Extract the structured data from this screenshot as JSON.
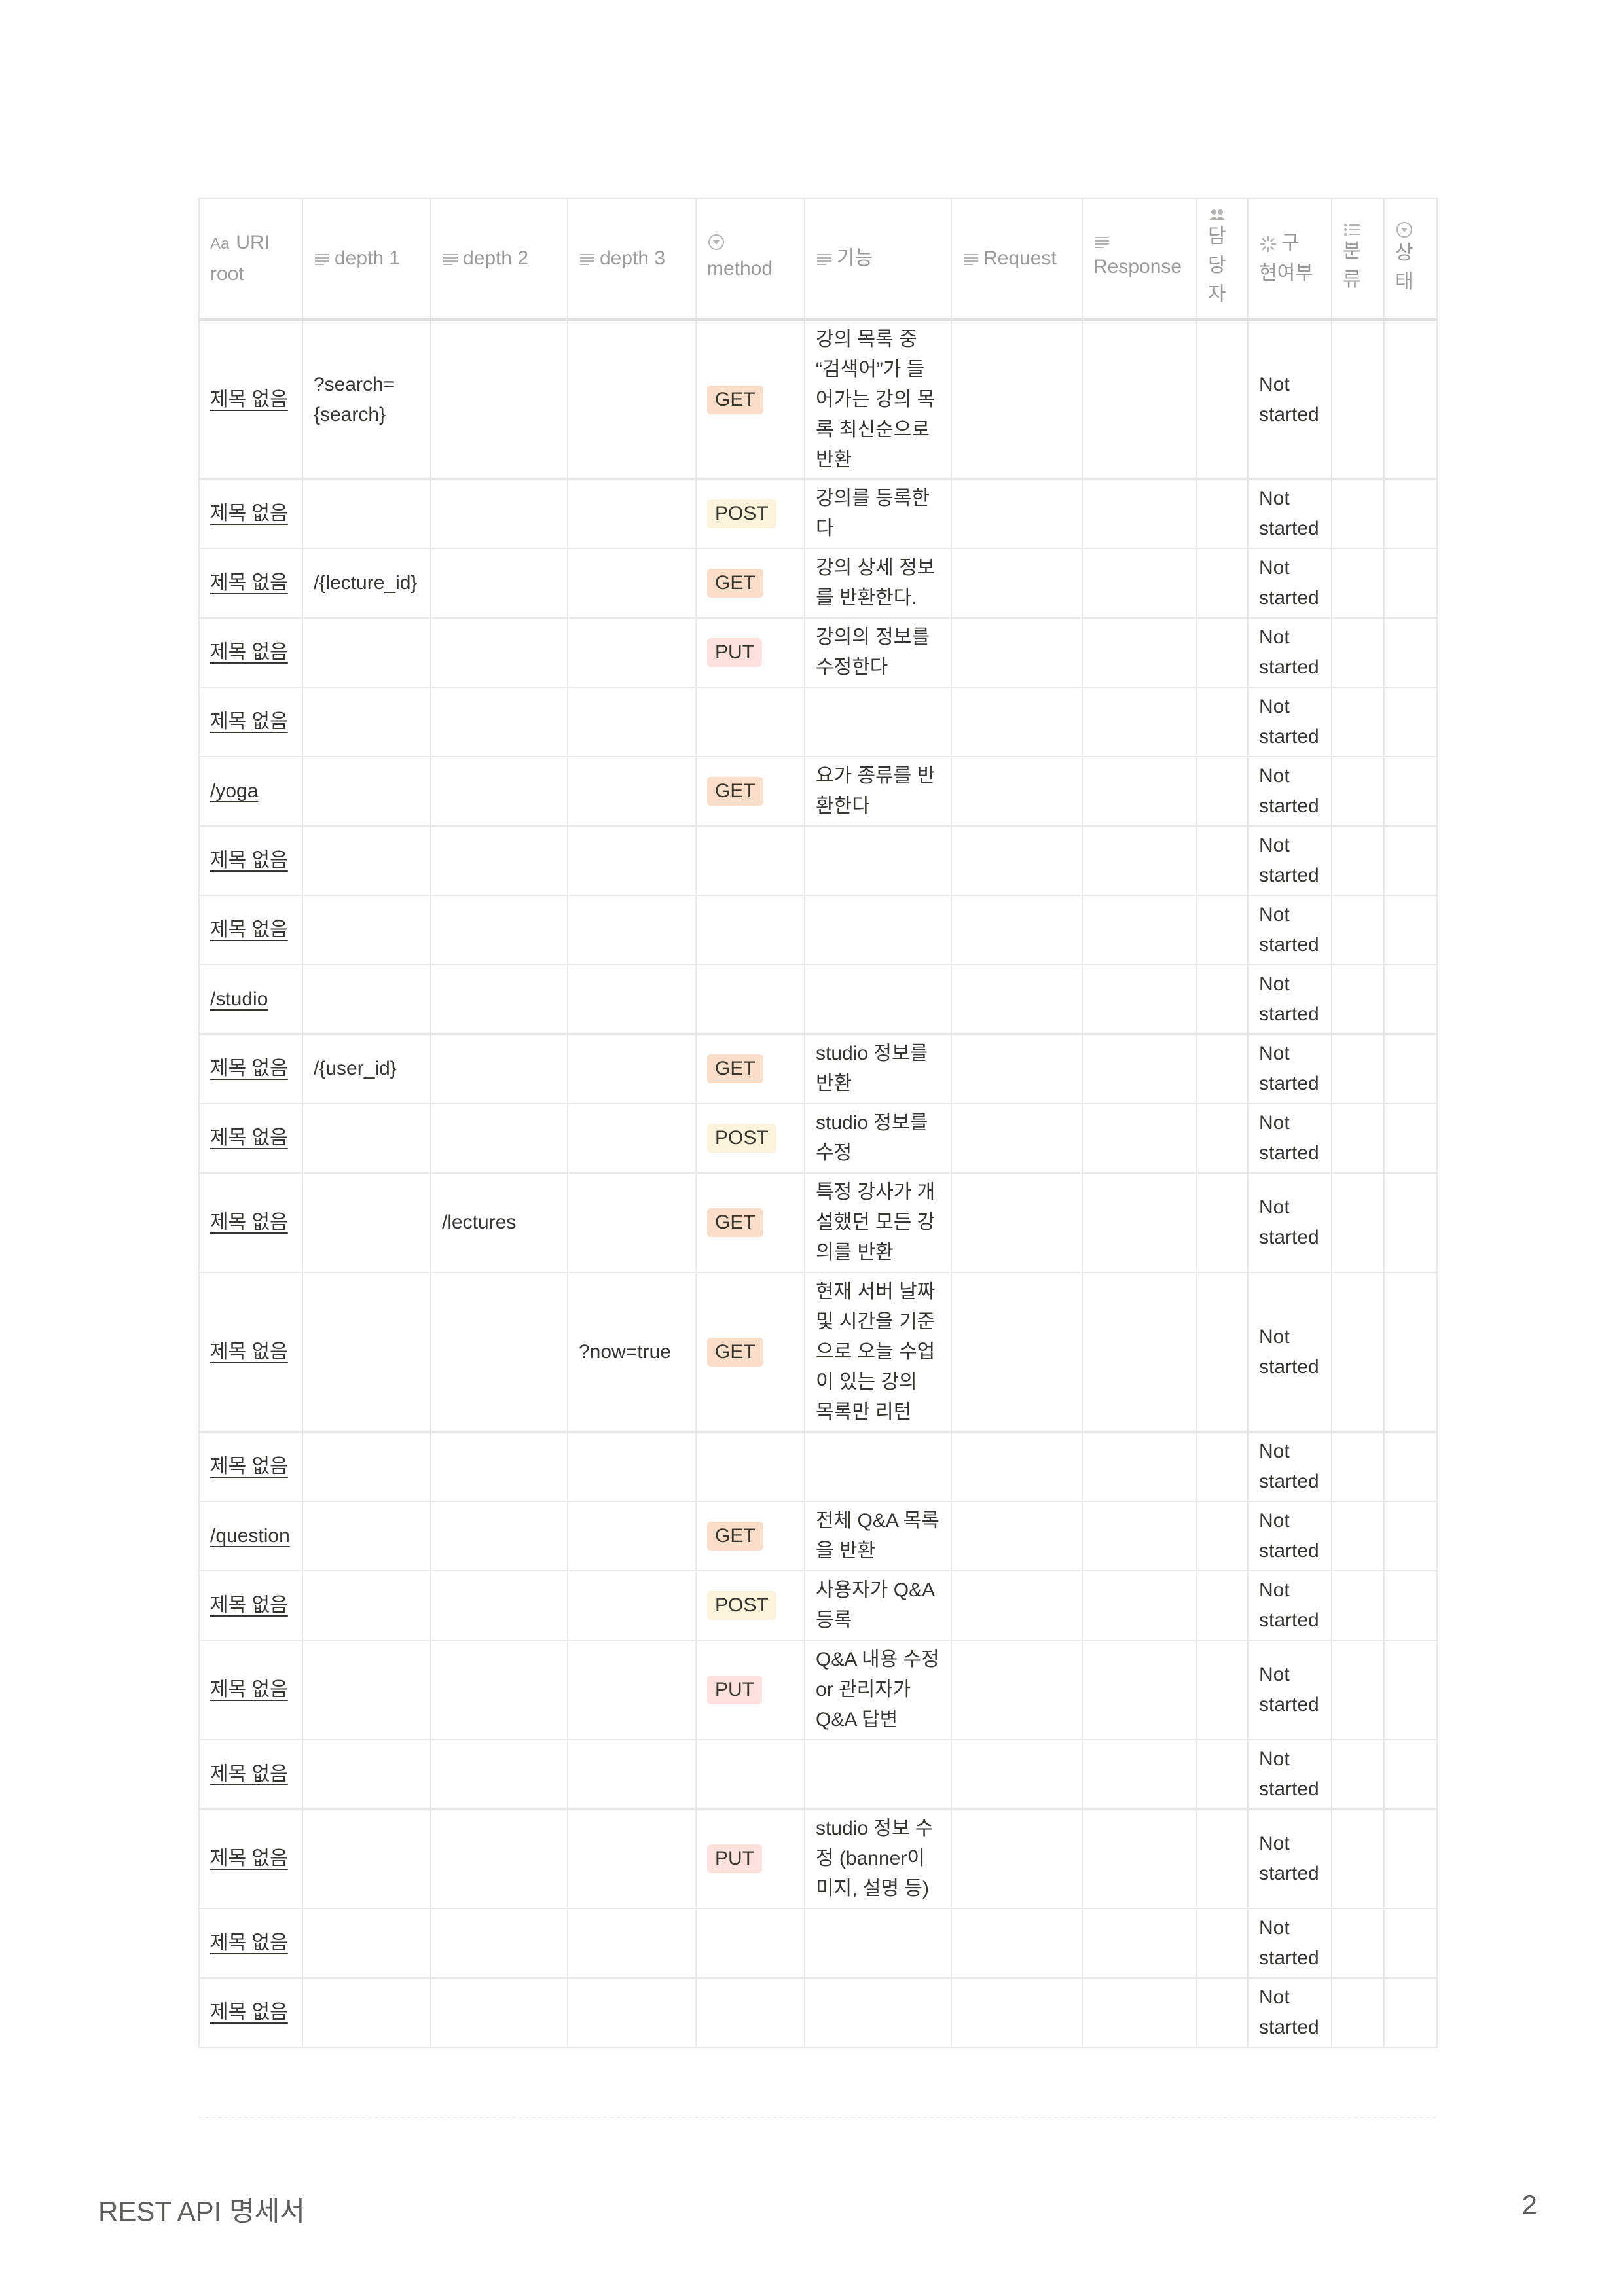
{
  "headers": {
    "uri_root": "URI root",
    "aa": "Aa",
    "depth1": "depth 1",
    "depth2": "depth 2",
    "depth3": "depth 3",
    "method": "method",
    "feature": "기능",
    "request": "Request",
    "response": "Response",
    "assignee": [
      "담",
      "당",
      "자"
    ],
    "implemented": "구 현여부",
    "category": [
      "분",
      "류"
    ],
    "status": [
      "상",
      "태"
    ]
  },
  "method_colors": {
    "GET": "#fadec9",
    "POST": "#fbf3db",
    "PUT": "#ffe2dd"
  },
  "rows": [
    {
      "uri": "제목 없음",
      "depth1": "?search=\n{search}",
      "depth2": "",
      "depth3": "",
      "method": "GET",
      "feature": "강의 목록 중 “검색어”가 들어가는 강의 목록 최신순으로 반환",
      "implemented": "Not started"
    },
    {
      "uri": "제목 없음",
      "depth1": "",
      "depth2": "",
      "depth3": "",
      "method": "POST",
      "feature": "강의를 등록한다",
      "implemented": "Not started"
    },
    {
      "uri": "제목 없음",
      "depth1": "/{lecture_id}",
      "depth2": "",
      "depth3": "",
      "method": "GET",
      "feature": "강의 상세 정보를 반환한다.",
      "implemented": "Not started"
    },
    {
      "uri": "제목 없음",
      "depth1": "",
      "depth2": "",
      "depth3": "",
      "method": "PUT",
      "feature": "강의의 정보를 수정한다",
      "implemented": "Not started"
    },
    {
      "uri": "제목 없음",
      "depth1": "",
      "depth2": "",
      "depth3": "",
      "method": "",
      "feature": "",
      "implemented": "Not started"
    },
    {
      "uri": "/yoga",
      "depth1": "",
      "depth2": "",
      "depth3": "",
      "method": "GET",
      "feature": "요가 종류를 반환한다",
      "implemented": "Not started"
    },
    {
      "uri": "제목 없음",
      "depth1": "",
      "depth2": "",
      "depth3": "",
      "method": "",
      "feature": "",
      "implemented": "Not started"
    },
    {
      "uri": "제목 없음",
      "depth1": "",
      "depth2": "",
      "depth3": "",
      "method": "",
      "feature": "",
      "implemented": "Not started"
    },
    {
      "uri": "/studio",
      "depth1": "",
      "depth2": "",
      "depth3": "",
      "method": "",
      "feature": "",
      "implemented": "Not started"
    },
    {
      "uri": "제목 없음",
      "depth1": "/{user_id}",
      "depth2": "",
      "depth3": "",
      "method": "GET",
      "feature": "studio 정보를 반환",
      "implemented": "Not started"
    },
    {
      "uri": "제목 없음",
      "depth1": "",
      "depth2": "",
      "depth3": "",
      "method": "POST",
      "feature": "studio 정보를 수정",
      "implemented": "Not started"
    },
    {
      "uri": "제목 없음",
      "depth1": "",
      "depth2": "/lectures",
      "depth3": "",
      "method": "GET",
      "feature": "특정 강사가 개설했던 모든 강의를 반환",
      "implemented": "Not started"
    },
    {
      "uri": "제목 없음",
      "depth1": "",
      "depth2": "",
      "depth3": "?now=true",
      "method": "GET",
      "feature": "현재 서버 날짜 및 시간을 기준으로 오늘 수업이 있는 강의 목록만 리턴",
      "implemented": "Not started"
    },
    {
      "uri": "제목 없음",
      "depth1": "",
      "depth2": "",
      "depth3": "",
      "method": "",
      "feature": "",
      "implemented": "Not started"
    },
    {
      "uri": "/question",
      "depth1": "",
      "depth2": "",
      "depth3": "",
      "method": "GET",
      "feature": "전체 Q&A 목록을 반환",
      "implemented": "Not started"
    },
    {
      "uri": "제목 없음",
      "depth1": "",
      "depth2": "",
      "depth3": "",
      "method": "POST",
      "feature": "사용자가 Q&A 등록",
      "implemented": "Not started"
    },
    {
      "uri": "제목 없음",
      "depth1": "",
      "depth2": "",
      "depth3": "",
      "method": "PUT",
      "feature": "Q&A 내용 수정 or 관리자가 Q&A 답변",
      "implemented": "Not started"
    },
    {
      "uri": "제목 없음",
      "depth1": "",
      "depth2": "",
      "depth3": "",
      "method": "",
      "feature": "",
      "implemented": "Not started"
    },
    {
      "uri": "제목 없음",
      "depth1": "",
      "depth2": "",
      "depth3": "",
      "method": "PUT",
      "feature": "studio 정보 수정 (banner이미지, 설명 등)",
      "implemented": "Not started"
    },
    {
      "uri": "제목 없음",
      "depth1": "",
      "depth2": "",
      "depth3": "",
      "method": "",
      "feature": "",
      "implemented": "Not started"
    },
    {
      "uri": "제목 없음",
      "depth1": "",
      "depth2": "",
      "depth3": "",
      "method": "",
      "feature": "",
      "implemented": "Not started"
    }
  ],
  "footer": {
    "title": "REST API 명세서",
    "page": "2"
  }
}
